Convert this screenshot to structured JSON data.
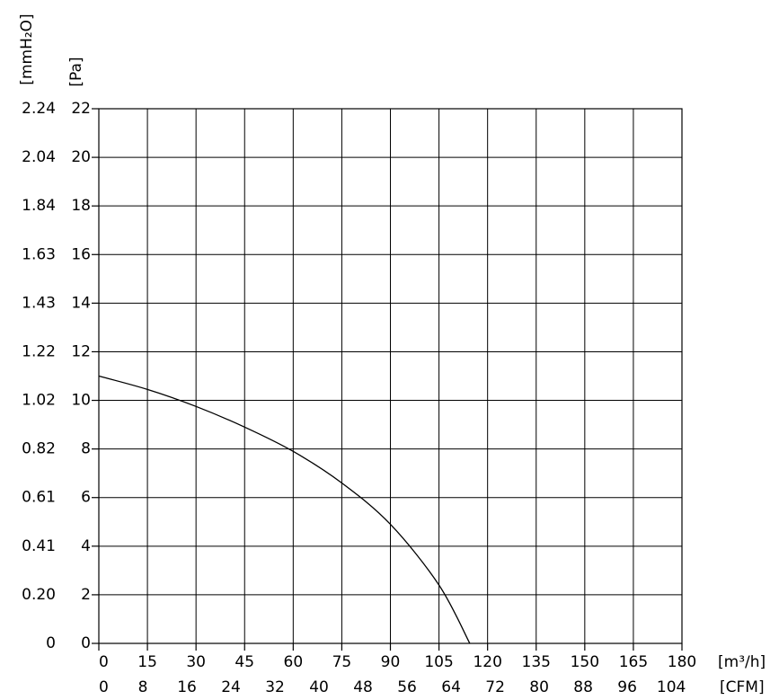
{
  "chart_data": {
    "type": "line",
    "x_label": "[m³/h]",
    "x2_label": "[CFM]",
    "y_label": "[Pa]",
    "y2_label": "[mmH₂O]",
    "x": [
      0,
      15,
      30,
      45,
      60,
      75,
      90,
      105,
      114.5
    ],
    "series": [
      {
        "color": "#000000",
        "values": [
          11.0,
          10.45,
          9.75,
          8.9,
          7.9,
          6.6,
          4.9,
          2.4,
          0
        ]
      }
    ],
    "xlim": [
      0,
      180
    ],
    "xticks": [
      0,
      15,
      30,
      45,
      60,
      75,
      90,
      105,
      120,
      135,
      150,
      165,
      180
    ],
    "x2lim": [
      0,
      105.94
    ],
    "x2ticks": [
      0,
      8,
      16,
      24,
      32,
      40,
      48,
      56,
      64,
      72,
      80,
      88,
      96,
      104
    ],
    "ylim": [
      0,
      22
    ],
    "yticks": [
      0,
      2,
      4,
      6,
      8,
      10,
      12,
      14,
      16,
      18,
      20,
      22
    ],
    "y2lim": [
      0,
      2.2434
    ],
    "y2ticks": [
      0,
      {
        "value": 0.2039,
        "label": "0.20"
      },
      {
        "value": 0.4079,
        "label": "0.41"
      },
      {
        "value": 0.6118,
        "label": "0.61"
      },
      {
        "value": 0.8158,
        "label": "0.82"
      },
      {
        "value": 1.0197,
        "label": "1.02"
      },
      {
        "value": 1.2237,
        "label": "1.22"
      },
      {
        "value": 1.4276,
        "label": "1.43"
      },
      {
        "value": 1.6316,
        "label": "1.63"
      },
      {
        "value": 1.8355,
        "label": "1.84"
      },
      {
        "value": 2.0394,
        "label": "2.04"
      },
      {
        "value": 2.2434,
        "label": "2.24"
      }
    ],
    "grid": true
  }
}
